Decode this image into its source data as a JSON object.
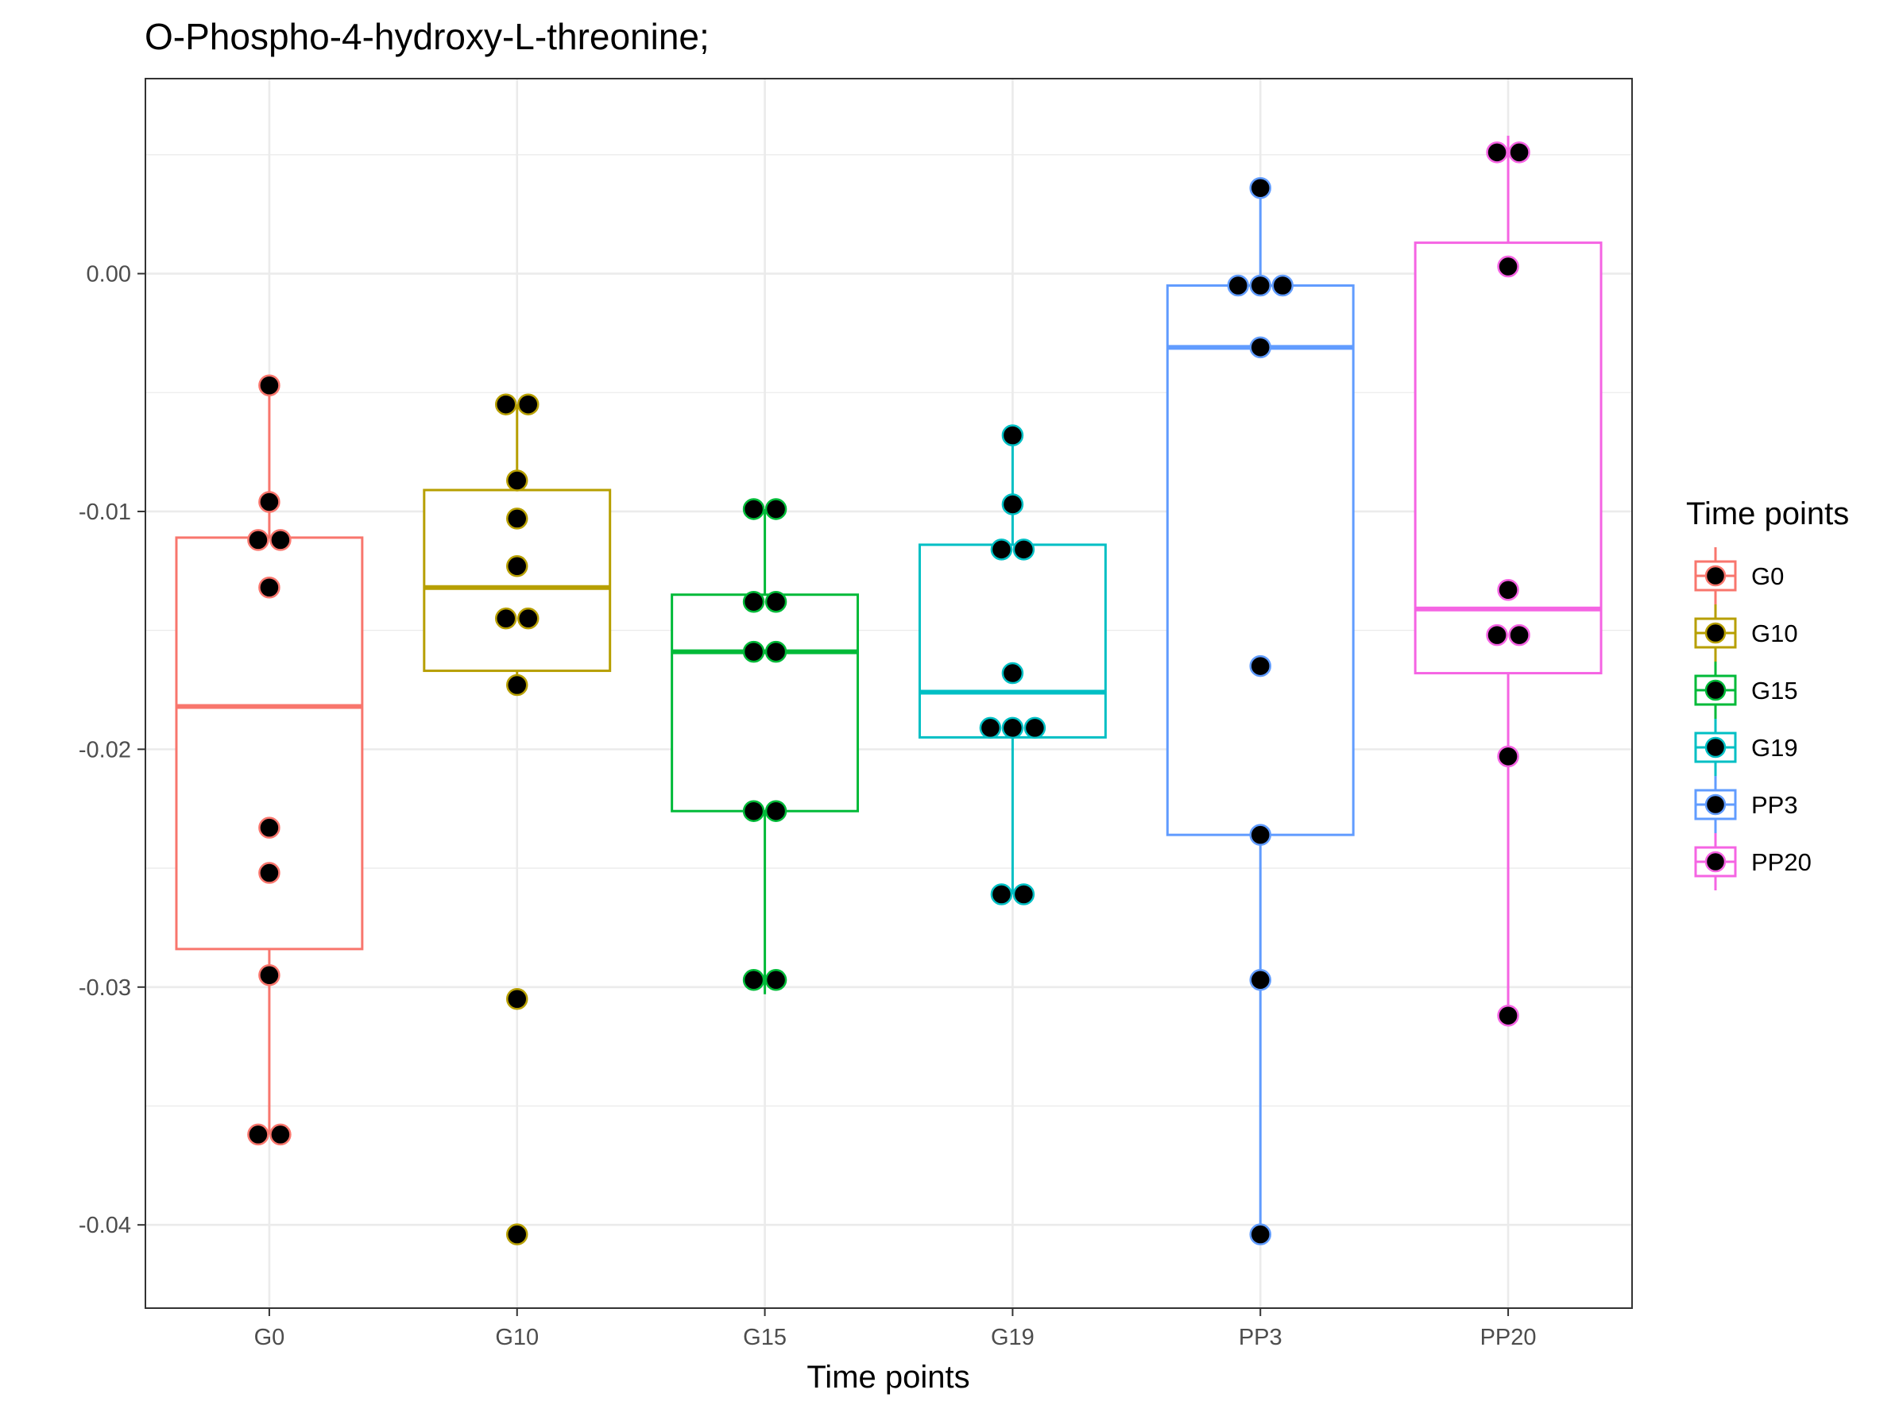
{
  "chart_data": {
    "type": "box",
    "title": "O-Phospho-4-hydroxy-L-threonine;",
    "xlabel": "Time points",
    "ylabel": "",
    "categories": [
      "G0",
      "G10",
      "G15",
      "G19",
      "PP3",
      "PP20"
    ],
    "ylim": [
      -0.0435,
      0.0082
    ],
    "yticks": [
      0.0,
      -0.01,
      -0.02,
      -0.03,
      -0.04
    ],
    "ytick_labels": [
      "0.00",
      "-0.01",
      "-0.02",
      "-0.03",
      "-0.04"
    ],
    "grid": true,
    "legend": {
      "title": "Time points",
      "position": "right"
    },
    "colors": [
      "#F8766D",
      "#B79F00",
      "#00BA38",
      "#00BFC4",
      "#619CFF",
      "#F564E3"
    ],
    "point_color": "#000000",
    "boxes": [
      {
        "name": "G0",
        "q1": -0.0284,
        "median": -0.0182,
        "q3": -0.0111,
        "whisker_low": -0.0362,
        "whisker_high": -0.0047
      },
      {
        "name": "G10",
        "q1": -0.0167,
        "median": -0.0132,
        "q3": -0.0091,
        "whisker_low": -0.0173,
        "whisker_high": -0.0055
      },
      {
        "name": "G15",
        "q1": -0.0226,
        "median": -0.0159,
        "q3": -0.0135,
        "whisker_low": -0.0303,
        "whisker_high": -0.0099
      },
      {
        "name": "G19",
        "q1": -0.0195,
        "median": -0.0176,
        "q3": -0.0114,
        "whisker_low": -0.0261,
        "whisker_high": -0.0068
      },
      {
        "name": "PP3",
        "q1": -0.0236,
        "median": -0.0031,
        "q3": -0.0005,
        "whisker_low": -0.0404,
        "whisker_high": 0.0036
      },
      {
        "name": "PP20",
        "q1": -0.0168,
        "median": -0.0141,
        "q3": 0.0013,
        "whisker_low": -0.0312,
        "whisker_high": 0.0058
      }
    ],
    "points": [
      [
        -0.0047,
        -0.0096,
        -0.0112,
        -0.0112,
        -0.0132,
        -0.0233,
        -0.0252,
        -0.0295,
        -0.0362,
        -0.0362
      ],
      [
        -0.0055,
        -0.0055,
        -0.0087,
        -0.0103,
        -0.0123,
        -0.0145,
        -0.0145,
        -0.0173,
        -0.0305,
        -0.0404
      ],
      [
        -0.0099,
        -0.0099,
        -0.0138,
        -0.0138,
        -0.0159,
        -0.0159,
        -0.0226,
        -0.0226,
        -0.0297,
        -0.0297
      ],
      [
        -0.0068,
        -0.0097,
        -0.0116,
        -0.0116,
        -0.0168,
        -0.0191,
        -0.0191,
        -0.0191,
        -0.0261,
        -0.0261
      ],
      [
        0.0036,
        -0.0005,
        -0.0005,
        -0.0005,
        -0.0031,
        -0.0165,
        -0.0236,
        -0.0297,
        -0.0404
      ],
      [
        0.0051,
        0.0051,
        0.0003,
        -0.0133,
        -0.0152,
        -0.0152,
        -0.0203,
        -0.0312
      ]
    ]
  }
}
